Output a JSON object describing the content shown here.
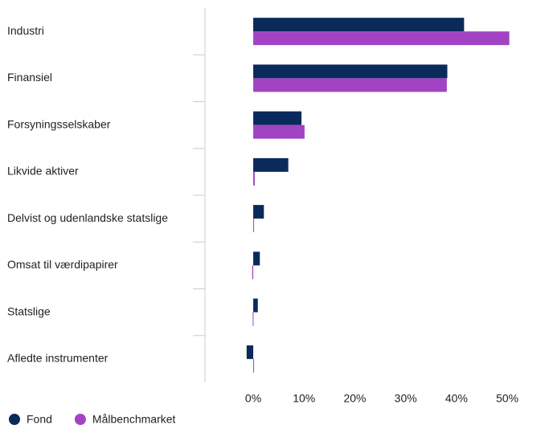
{
  "chart_data": {
    "type": "bar",
    "orientation": "horizontal",
    "categories": [
      "Industri",
      "Finansiel",
      "Forsyningsselskaber",
      "Likvide aktiver",
      "Delvist og udenlandske statslige",
      "Omsat til værdipapirer",
      "Statslige",
      "Afledte instrumenter"
    ],
    "series": [
      {
        "name": "Fond",
        "color": "#0b2a5c",
        "values": [
          41.5,
          38.2,
          9.5,
          6.9,
          2.1,
          1.3,
          0.9,
          -1.3
        ]
      },
      {
        "name": "Målbenchmarket",
        "color": "#a143c2",
        "values": [
          50.4,
          38.1,
          10.1,
          0.3,
          0,
          -0.2,
          -0.1,
          0.1
        ]
      }
    ],
    "xlim": [
      -9.5,
      59
    ],
    "xticks": [
      {
        "value": 0,
        "label": "0%"
      },
      {
        "value": 10,
        "label": "10%"
      },
      {
        "value": 20,
        "label": "20%"
      },
      {
        "value": 30,
        "label": "30%"
      },
      {
        "value": 40,
        "label": "40%"
      },
      {
        "value": 50,
        "label": "50%"
      }
    ],
    "legend": "bottom-left"
  }
}
